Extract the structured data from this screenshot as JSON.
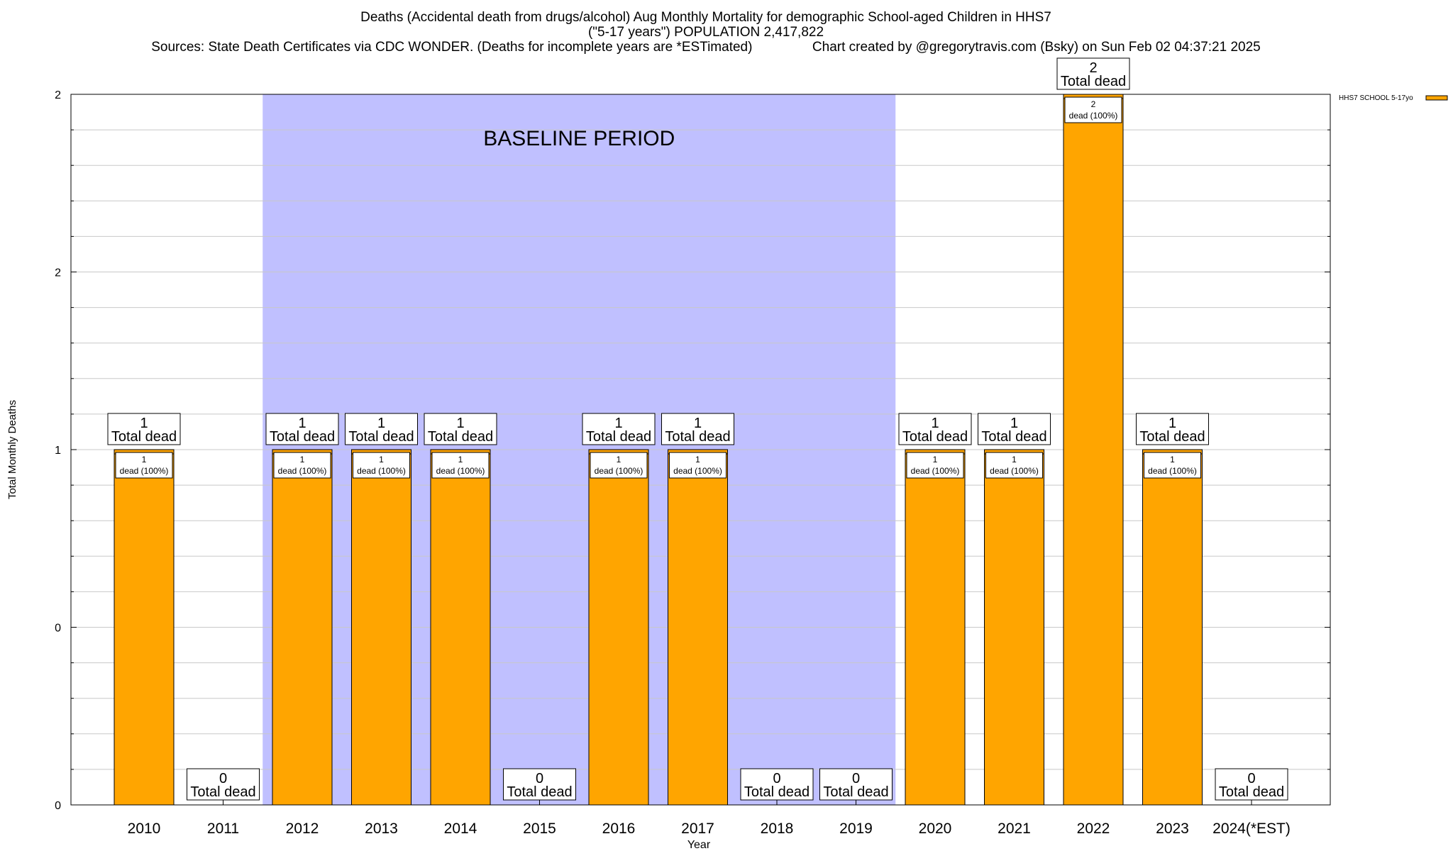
{
  "title": {
    "line1": "Deaths (Accidental death from drugs/alcohol) Aug Monthly Mortality for demographic School-aged Children in HHS7",
    "line2": "(\"5-17 years\") POPULATION 2,417,822",
    "line3_left": "Sources: State Death Certificates via CDC WONDER. (Deaths for incomplete years are *ESTimated)",
    "line3_right": "Chart created by @gregorytravis.com (Bsky) on Sun Feb 02 04:37:21 2025"
  },
  "chart_data": {
    "type": "bar",
    "xlabel": "Year",
    "ylabel": "Total Monthly Deaths",
    "categories": [
      "2010",
      "2011",
      "2012",
      "2013",
      "2014",
      "2015",
      "2016",
      "2017",
      "2018",
      "2019",
      "2020",
      "2021",
      "2022",
      "2023",
      "2024(*EST)"
    ],
    "series": [
      {
        "name": "HHS7 SCHOOL 5-17yo",
        "color": "#ffa500",
        "values": [
          1,
          0,
          1,
          1,
          1,
          0,
          1,
          1,
          0,
          0,
          1,
          1,
          2,
          1,
          0
        ]
      }
    ],
    "ylim": [
      0,
      2
    ],
    "y_tick_labels": [
      "0",
      "0",
      "1",
      "2",
      "2"
    ],
    "total_label": "Total dead",
    "inner_label": "dead (100%)",
    "baseline": {
      "label": "BASELINE PERIOD",
      "from": "2012",
      "to": "2019",
      "color": "#c0c0ff"
    },
    "grid": true,
    "legend_position": "top-right"
  }
}
